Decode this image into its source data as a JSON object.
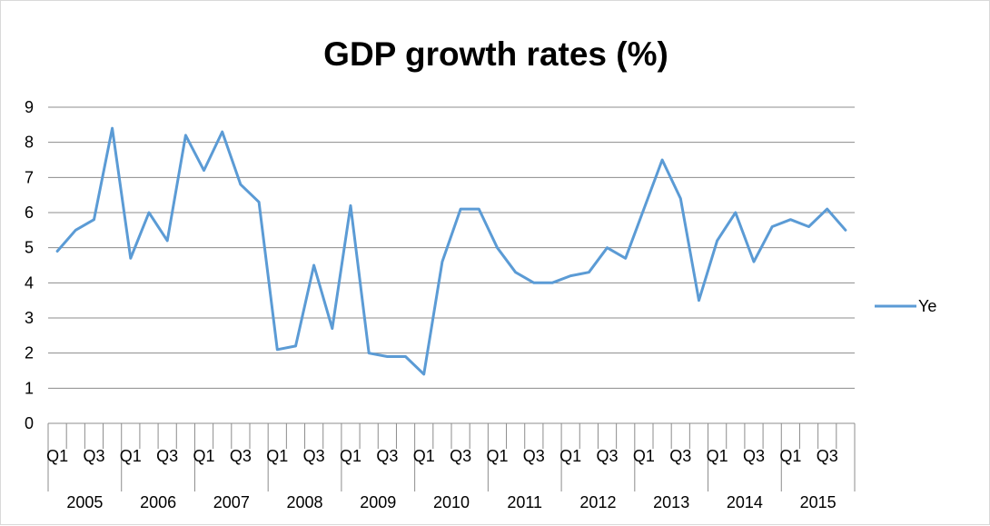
{
  "chart_data": {
    "type": "line",
    "title": "GDP growth rates (%)",
    "xlabel": "",
    "ylabel": "",
    "ylim": [
      0,
      9
    ],
    "y_ticks": [
      0,
      1,
      2,
      3,
      4,
      5,
      6,
      7,
      8,
      9
    ],
    "grid": true,
    "legend_position": "right",
    "series_color": "#5b9bd5",
    "quarter_labels": [
      "Q1",
      "Q3"
    ],
    "years": [
      "2005",
      "2006",
      "2007",
      "2008",
      "2009",
      "2010",
      "2011",
      "2012",
      "2013",
      "2014",
      "2015"
    ],
    "x": [
      "2005 Q1",
      "2005 Q2",
      "2005 Q3",
      "2005 Q4",
      "2006 Q1",
      "2006 Q2",
      "2006 Q3",
      "2006 Q4",
      "2007 Q1",
      "2007 Q2",
      "2007 Q3",
      "2007 Q4",
      "2008 Q1",
      "2008 Q2",
      "2008 Q3",
      "2008 Q4",
      "2009 Q1",
      "2009 Q2",
      "2009 Q3",
      "2009 Q4",
      "2010 Q1",
      "2010 Q2",
      "2010 Q3",
      "2010 Q4",
      "2011 Q1",
      "2011 Q2",
      "2011 Q3",
      "2011 Q4",
      "2012 Q1",
      "2012 Q2",
      "2012 Q3",
      "2012 Q4",
      "2013 Q1",
      "2013 Q2",
      "2013 Q3",
      "2013 Q4",
      "2014 Q1",
      "2014 Q2",
      "2014 Q3",
      "2014 Q4",
      "2015 Q1",
      "2015 Q2",
      "2015 Q3",
      "2015 Q4"
    ],
    "series": [
      {
        "name": "Ye",
        "values": [
          4.9,
          5.5,
          5.8,
          8.4,
          4.7,
          6.0,
          5.2,
          8.2,
          7.2,
          8.3,
          6.8,
          6.3,
          2.1,
          2.2,
          4.5,
          2.7,
          6.2,
          2.0,
          1.9,
          1.9,
          1.4,
          4.6,
          6.1,
          6.1,
          5.0,
          4.3,
          4.0,
          4.0,
          4.2,
          4.3,
          5.0,
          4.7,
          6.1,
          7.5,
          6.4,
          3.5,
          5.2,
          6.0,
          4.6,
          5.6,
          5.8,
          5.6,
          6.1,
          5.5
        ]
      }
    ]
  }
}
